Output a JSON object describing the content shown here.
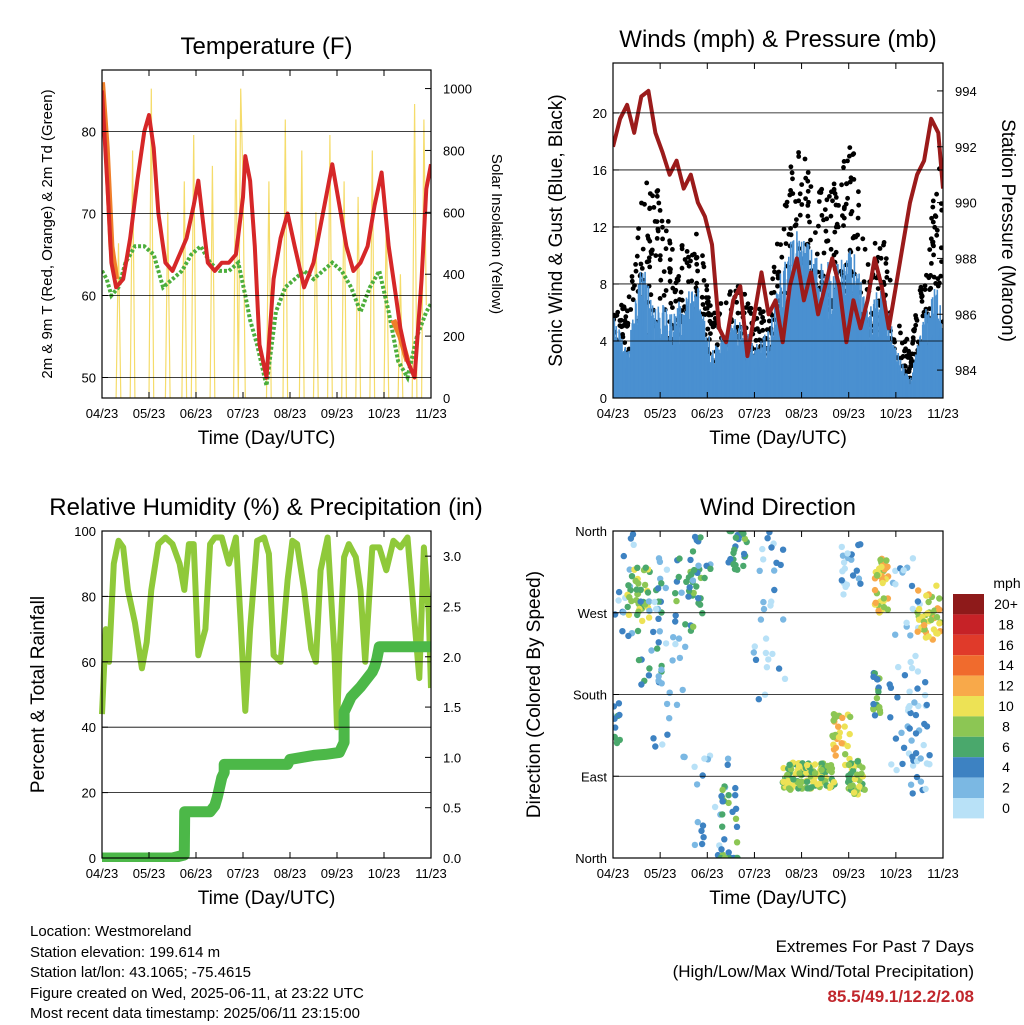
{
  "chart_data": [
    {
      "id": "temperature",
      "type": "line",
      "title": "Temperature (F)",
      "xlabel": "Time (Day/UTC)",
      "ylabel": "2m & 9m T (Red, Orange) & 2m Td (Green)",
      "y2label": "Solar Insolation (Yellow)",
      "x_ticks": [
        "04/23",
        "05/23",
        "06/23",
        "07/23",
        "08/23",
        "09/23",
        "10/23",
        "11/23"
      ],
      "xlim": [
        0,
        7
      ],
      "ylim": [
        47.5,
        87.5
      ],
      "y_ticks": [
        50,
        60,
        70,
        80
      ],
      "y2lim": [
        0,
        1060
      ],
      "y2_ticks": [
        0,
        200,
        400,
        600,
        800,
        1000
      ],
      "grid": true,
      "colors": {
        "t2m": "#d62728",
        "t9m": "#f07f2a",
        "td": "#4cae3c",
        "solar": "#f5dc6b"
      },
      "series": [
        {
          "key": "t2m",
          "x": [
            0,
            0.05,
            0.12,
            0.2,
            0.3,
            0.45,
            0.6,
            0.75,
            0.9,
            1.0,
            1.1,
            1.2,
            1.35,
            1.5,
            1.65,
            1.8,
            1.95,
            2.05,
            2.15,
            2.25,
            2.4,
            2.55,
            2.7,
            2.85,
            3.0,
            3.05,
            3.15,
            3.25,
            3.35,
            3.5,
            3.65,
            3.8,
            3.95,
            4.1,
            4.3,
            4.5,
            4.7,
            4.9,
            5.05,
            5.2,
            5.35,
            5.5,
            5.65,
            5.8,
            5.95,
            6.1,
            6.25,
            6.35,
            6.5,
            6.65,
            6.8,
            6.9,
            7.0
          ],
          "y": [
            85,
            80,
            73,
            64,
            61,
            62,
            67,
            74,
            80,
            82,
            78,
            70,
            64,
            63,
            65,
            67,
            71,
            74,
            69,
            64,
            63,
            64,
            64,
            65,
            72,
            77,
            74,
            66,
            54,
            50,
            62,
            67,
            70,
            66,
            61,
            64,
            70,
            76,
            71,
            66,
            63,
            64,
            66,
            71,
            75,
            66,
            60,
            56,
            52,
            50,
            62,
            73,
            76
          ]
        },
        {
          "key": "t9m",
          "x": [
            0,
            0.1,
            0.2,
            0.3,
            6.2,
            6.35,
            6.5
          ],
          "y": [
            86,
            78,
            66,
            62,
            57,
            55,
            52
          ]
        },
        {
          "key": "td",
          "x": [
            0,
            0.1,
            0.2,
            0.35,
            0.5,
            0.7,
            0.9,
            1.1,
            1.3,
            1.5,
            1.7,
            1.9,
            2.1,
            2.3,
            2.5,
            2.7,
            2.9,
            3.05,
            3.15,
            3.3,
            3.5,
            3.7,
            3.9,
            4.1,
            4.3,
            4.5,
            4.7,
            4.9,
            5.1,
            5.3,
            5.5,
            5.7,
            5.9,
            6.1,
            6.3,
            6.5,
            6.7,
            6.9,
            7.0
          ],
          "y": [
            63,
            62,
            60,
            61,
            64,
            66,
            66,
            65,
            61,
            62,
            63,
            65,
            66,
            64,
            63,
            63,
            64,
            60,
            57,
            54,
            49,
            58,
            61,
            62,
            63,
            62,
            63,
            64,
            63,
            61,
            58,
            61,
            63,
            58,
            52,
            50,
            55,
            58,
            59
          ]
        },
        {
          "key": "solar",
          "x": [
            0.3,
            0.35,
            0.4,
            0.6,
            0.65,
            0.7,
            1.0,
            1.05,
            1.1,
            1.35,
            1.4,
            1.45,
            1.7,
            1.75,
            1.8,
            1.9,
            1.95,
            2.0,
            2.3,
            2.35,
            2.4,
            2.8,
            2.85,
            2.9,
            2.95,
            3.0,
            3.05,
            3.5,
            3.55,
            3.6,
            3.85,
            3.9,
            3.95,
            4.2,
            4.25,
            4.3,
            4.5,
            4.55,
            4.6,
            4.8,
            4.85,
            4.9,
            5.1,
            5.15,
            5.2,
            5.4,
            5.45,
            5.5,
            5.7,
            5.75,
            5.8,
            6.0,
            6.05,
            6.1,
            6.3,
            6.35,
            6.4,
            6.6,
            6.65,
            6.7,
            6.8,
            6.85,
            6.9
          ],
          "y": [
            0,
            500,
            0,
            0,
            800,
            0,
            0,
            1000,
            0,
            0,
            600,
            0,
            0,
            700,
            0,
            0,
            850,
            0,
            0,
            750,
            0,
            0,
            900,
            0,
            1000,
            700,
            0,
            0,
            700,
            0,
            0,
            900,
            0,
            0,
            800,
            0,
            0,
            600,
            0,
            0,
            850,
            0,
            0,
            700,
            0,
            0,
            650,
            0,
            0,
            800,
            0,
            0,
            600,
            0,
            0,
            400,
            0,
            0,
            950,
            0,
            0,
            900,
            300
          ]
        }
      ]
    },
    {
      "id": "winds",
      "type": "scatter",
      "title": "Winds (mph) & Pressure (mb)",
      "xlabel": "Time (Day/UTC)",
      "ylabel": "Sonic Wind & Gust (Blue, Black)",
      "y2label": "Station Pressure (Maroon)",
      "x_ticks": [
        "04/23",
        "05/23",
        "06/23",
        "07/23",
        "08/23",
        "09/23",
        "10/23",
        "11/23"
      ],
      "xlim": [
        0,
        7
      ],
      "ylim": [
        0,
        23.5
      ],
      "y_ticks": [
        0,
        4,
        8,
        12,
        16,
        20
      ],
      "y2lim": [
        983,
        995
      ],
      "y2_ticks": [
        984,
        986,
        988,
        990,
        992,
        994
      ],
      "grid": true,
      "colors": {
        "wind": "#4a90d0",
        "gust": "#000000",
        "pressure": "#9b1b1b"
      },
      "wind_envelope": {
        "x": [
          0,
          0.3,
          0.6,
          0.9,
          1.2,
          1.5,
          1.8,
          2.1,
          2.4,
          2.7,
          3.0,
          3.3,
          3.6,
          3.9,
          4.2,
          4.5,
          4.8,
          5.1,
          5.4,
          5.7,
          6.0,
          6.3,
          6.6,
          6.9,
          7.0
        ],
        "y": [
          5,
          3,
          8,
          6,
          5,
          6,
          7,
          3,
          4,
          5,
          3,
          4,
          8,
          10,
          9,
          8,
          8,
          9,
          5,
          7,
          3,
          1,
          5,
          7,
          6
        ]
      },
      "gust_envelope": {
        "x": [
          0,
          0.3,
          0.6,
          0.9,
          1.2,
          1.5,
          1.8,
          2.1,
          2.4,
          2.7,
          3.0,
          3.3,
          3.6,
          3.9,
          4.2,
          4.5,
          4.8,
          5.1,
          5.4,
          5.7,
          6.0,
          6.3,
          6.6,
          6.9,
          7.0
        ],
        "y": [
          8,
          5,
          12,
          14,
          10,
          9,
          10,
          5,
          6,
          7,
          5,
          6,
          11,
          16,
          13,
          12,
          14,
          15,
          8,
          10,
          5,
          3,
          8,
          14,
          13
        ]
      },
      "pressure": {
        "x": [
          0,
          0.15,
          0.3,
          0.45,
          0.6,
          0.75,
          0.9,
          1.05,
          1.2,
          1.35,
          1.5,
          1.65,
          1.8,
          1.95,
          2.1,
          2.25,
          2.4,
          2.55,
          2.7,
          2.85,
          3.0,
          3.15,
          3.3,
          3.45,
          3.6,
          3.75,
          3.9,
          4.05,
          4.2,
          4.35,
          4.5,
          4.65,
          4.8,
          4.95,
          5.1,
          5.25,
          5.4,
          5.55,
          5.7,
          5.85,
          6.0,
          6.15,
          6.3,
          6.45,
          6.6,
          6.75,
          6.9,
          7.0
        ],
        "y": [
          992,
          993,
          993.5,
          992.5,
          993.8,
          994,
          992.5,
          991.8,
          991,
          991.5,
          990.5,
          991,
          990,
          989.5,
          988.5,
          985.5,
          985,
          986.5,
          987,
          984.5,
          986,
          987.5,
          986,
          986.5,
          985,
          987,
          988,
          986.5,
          987.5,
          986,
          987,
          988,
          987,
          985,
          986.5,
          985.5,
          986.5,
          988,
          987,
          985.5,
          987,
          988.5,
          990,
          991,
          991.5,
          993,
          992.5,
          990.5
        ]
      }
    },
    {
      "id": "humidity",
      "type": "line",
      "title": "Relative Humidity (%) & Precipitation (in)",
      "xlabel": "Time (Day/UTC)",
      "ylabel": "Percent & Total Rainfall",
      "x_ticks": [
        "04/23",
        "05/23",
        "06/23",
        "07/23",
        "08/23",
        "09/23",
        "10/23",
        "11/23"
      ],
      "xlim": [
        0,
        7
      ],
      "ylim": [
        0,
        100
      ],
      "y_ticks": [
        0,
        20,
        40,
        60,
        80,
        100
      ],
      "y2lim": [
        0,
        3.25
      ],
      "y2_ticks": [
        "0.0",
        "0.5",
        "1.0",
        "1.5",
        "2.0",
        "2.5",
        "3.0"
      ],
      "grid": true,
      "colors": {
        "rh": "#8fc93a",
        "rain": "#4cb848"
      },
      "series": [
        {
          "key": "rh",
          "x": [
            0,
            0.08,
            0.15,
            0.25,
            0.35,
            0.45,
            0.55,
            0.7,
            0.85,
            0.95,
            1.05,
            1.2,
            1.35,
            1.5,
            1.65,
            1.75,
            1.85,
            1.95,
            2.05,
            2.2,
            2.3,
            2.4,
            2.55,
            2.7,
            2.85,
            2.95,
            3.0,
            3.05,
            3.15,
            3.3,
            3.45,
            3.55,
            3.65,
            3.8,
            3.95,
            4.05,
            4.15,
            4.3,
            4.45,
            4.55,
            4.65,
            4.8,
            4.95,
            5.0,
            5.05,
            5.15,
            5.25,
            5.4,
            5.5,
            5.6,
            5.75,
            5.9,
            6.05,
            6.2,
            6.35,
            6.5,
            6.65,
            6.75,
            6.85,
            6.95,
            7.0
          ],
          "y": [
            44,
            70,
            60,
            90,
            97,
            95,
            82,
            72,
            58,
            66,
            82,
            96,
            98,
            96,
            90,
            82,
            96,
            96,
            62,
            70,
            96,
            98,
            98,
            90,
            98,
            72,
            58,
            45,
            70,
            97,
            98,
            93,
            62,
            60,
            85,
            97,
            96,
            82,
            64,
            60,
            88,
            98,
            62,
            40,
            62,
            92,
            96,
            92,
            82,
            60,
            95,
            95,
            88,
            97,
            95,
            98,
            72,
            55,
            95,
            75,
            52
          ]
        },
        {
          "key": "rain",
          "x": [
            0,
            0.5,
            1.0,
            1.5,
            1.75,
            1.76,
            2.3,
            2.4,
            2.45,
            2.5,
            2.55,
            2.6,
            2.6,
            3.0,
            3.5,
            3.95,
            4.0,
            4.25,
            4.5,
            4.75,
            5.05,
            5.15,
            5.15,
            5.3,
            5.5,
            5.75,
            5.8,
            5.85,
            5.9,
            7.0
          ],
          "y": [
            0,
            0,
            0,
            0,
            0.03,
            0.46,
            0.46,
            0.52,
            0.6,
            0.7,
            0.8,
            0.85,
            0.93,
            0.93,
            0.93,
            0.93,
            0.98,
            1.0,
            1.02,
            1.03,
            1.05,
            1.15,
            1.45,
            1.6,
            1.7,
            1.85,
            1.9,
            1.98,
            2.1,
            2.1
          ]
        }
      ]
    },
    {
      "id": "winddir",
      "type": "scatter",
      "title": "Wind Direction",
      "xlabel": "Time (Day/UTC)",
      "ylabel": "Direction (Colored By Speed)",
      "x_ticks": [
        "04/23",
        "05/23",
        "06/23",
        "07/23",
        "08/23",
        "09/23",
        "10/23",
        "11/23"
      ],
      "xlim": [
        0,
        7
      ],
      "ylim": [
        0,
        360
      ],
      "y_ticks": [
        "North",
        "East",
        "South",
        "West",
        "North"
      ],
      "grid": true,
      "legend": {
        "title": "mph",
        "placement": "right",
        "labels": [
          "20+",
          "18",
          "16",
          "14",
          "12",
          "10",
          "8",
          "6",
          "4",
          "2",
          "0"
        ],
        "colors": [
          "#8e1a1a",
          "#c62227",
          "#e03a2a",
          "#f06b2d",
          "#f8a94a",
          "#ede255",
          "#8cc654",
          "#4aa86c",
          "#3d82c2",
          "#7bb8e3",
          "#b8e1f7"
        ]
      },
      "clusters": [
        {
          "x": 0.05,
          "y": 150,
          "speed": 4,
          "n": 12,
          "dx": 0.12,
          "dy": 25
        },
        {
          "x": 0.2,
          "y": 300,
          "speed": 2,
          "n": 15,
          "dx": 0.25,
          "dy": 60
        },
        {
          "x": 0.55,
          "y": 290,
          "speed": 8,
          "n": 35,
          "dx": 0.25,
          "dy": 30
        },
        {
          "x": 0.75,
          "y": 260,
          "speed": 4,
          "n": 30,
          "dx": 0.3,
          "dy": 70
        },
        {
          "x": 1.2,
          "y": 220,
          "speed": 2,
          "n": 30,
          "dx": 0.35,
          "dy": 110
        },
        {
          "x": 1.6,
          "y": 290,
          "speed": 6,
          "n": 25,
          "dx": 0.3,
          "dy": 40
        },
        {
          "x": 1.8,
          "y": 320,
          "speed": 4,
          "n": 20,
          "dx": 0.3,
          "dy": 35
        },
        {
          "x": 2.1,
          "y": 60,
          "speed": 2,
          "n": 20,
          "dx": 0.4,
          "dy": 60
        },
        {
          "x": 2.45,
          "y": 30,
          "speed": 6,
          "n": 30,
          "dx": 0.2,
          "dy": 50
        },
        {
          "x": 2.65,
          "y": 340,
          "speed": 6,
          "n": 25,
          "dx": 0.2,
          "dy": 25
        },
        {
          "x": 3.3,
          "y": 260,
          "speed": 2,
          "n": 30,
          "dx": 0.35,
          "dy": 100
        },
        {
          "x": 3.9,
          "y": 90,
          "speed": 8,
          "n": 60,
          "dx": 0.3,
          "dy": 15
        },
        {
          "x": 4.4,
          "y": 90,
          "speed": 8,
          "n": 50,
          "dx": 0.3,
          "dy": 15
        },
        {
          "x": 4.85,
          "y": 130,
          "speed": 10,
          "n": 30,
          "dx": 0.2,
          "dy": 30
        },
        {
          "x": 5.15,
          "y": 90,
          "speed": 8,
          "n": 40,
          "dx": 0.2,
          "dy": 20
        },
        {
          "x": 5.05,
          "y": 320,
          "speed": 2,
          "n": 20,
          "dx": 0.2,
          "dy": 30
        },
        {
          "x": 5.7,
          "y": 300,
          "speed": 10,
          "n": 40,
          "dx": 0.15,
          "dy": 30
        },
        {
          "x": 5.6,
          "y": 180,
          "speed": 6,
          "n": 20,
          "dx": 0.08,
          "dy": 25
        },
        {
          "x": 6.2,
          "y": 200,
          "speed": 2,
          "n": 40,
          "dx": 0.35,
          "dy": 130
        },
        {
          "x": 6.7,
          "y": 270,
          "speed": 10,
          "n": 40,
          "dx": 0.25,
          "dy": 30
        },
        {
          "x": 6.5,
          "y": 150,
          "speed": 2,
          "n": 30,
          "dx": 0.25,
          "dy": 80
        }
      ]
    }
  ],
  "info": {
    "location": "Location: Westmoreland",
    "elevation": "Station elevation: 199.614 m",
    "latlon": "Station lat/lon: 43.1065; -75.4615",
    "created": "Figure created on Wed, 2025-06-11, at 23:22 UTC",
    "recent": "Most recent data timestamp: 2025/06/11 23:15:00"
  },
  "extremes": {
    "title": "Extremes For Past 7 Days",
    "subtitle": "(High/Low/Max Wind/Total Precipitation)",
    "values": "85.5/49.1/12.2/2.08"
  }
}
